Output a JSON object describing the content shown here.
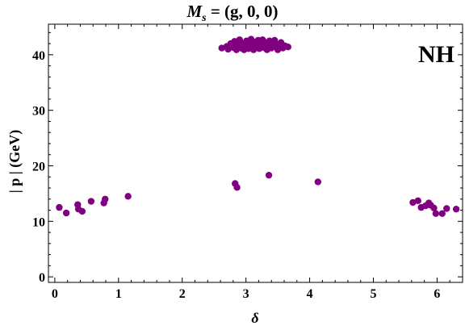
{
  "chart_data": {
    "type": "scatter",
    "title": "M_s = (g, 0, 0)",
    "title_parts": {
      "main": "M",
      "sub": "s",
      "rest": " = (g, 0, 0)"
    },
    "xlabel": "δ",
    "ylabel": "| p | (GeV)",
    "annotation": "NH",
    "xlim": [
      -0.1,
      6.4
    ],
    "ylim": [
      -1,
      45.5
    ],
    "xticks": [
      0,
      1,
      2,
      3,
      4,
      5,
      6
    ],
    "yticks": [
      0,
      10,
      20,
      30,
      40
    ],
    "grid": false,
    "marker_color": "#800080",
    "series": [
      {
        "points": [
          [
            0.07,
            12.5
          ],
          [
            0.18,
            11.5
          ],
          [
            0.36,
            13.0
          ],
          [
            0.37,
            12.2
          ],
          [
            0.43,
            11.8
          ],
          [
            0.57,
            13.6
          ],
          [
            0.77,
            13.3
          ],
          [
            0.79,
            14.0
          ],
          [
            1.15,
            14.5
          ],
          [
            2.83,
            16.8
          ],
          [
            2.86,
            16.1
          ],
          [
            3.36,
            18.3
          ],
          [
            4.13,
            17.1
          ],
          [
            5.62,
            13.4
          ],
          [
            5.7,
            13.7
          ],
          [
            5.75,
            12.5
          ],
          [
            5.82,
            12.8
          ],
          [
            5.87,
            13.3
          ],
          [
            5.9,
            12.9
          ],
          [
            5.95,
            12.4
          ],
          [
            5.98,
            11.4
          ],
          [
            6.08,
            11.4
          ],
          [
            6.15,
            12.3
          ],
          [
            6.3,
            12.2
          ],
          [
            2.62,
            41.2
          ],
          [
            2.7,
            41.5
          ],
          [
            2.72,
            41.0
          ],
          [
            2.76,
            42.0
          ],
          [
            2.8,
            41.3
          ],
          [
            2.82,
            42.4
          ],
          [
            2.85,
            40.9
          ],
          [
            2.87,
            41.8
          ],
          [
            2.9,
            42.7
          ],
          [
            2.92,
            41.2
          ],
          [
            2.94,
            42.1
          ],
          [
            2.97,
            40.9
          ],
          [
            2.99,
            41.6
          ],
          [
            3.01,
            42.5
          ],
          [
            3.04,
            41.1
          ],
          [
            3.06,
            42.0
          ],
          [
            3.08,
            42.8
          ],
          [
            3.1,
            41.4
          ],
          [
            3.12,
            40.9
          ],
          [
            3.15,
            42.3
          ],
          [
            3.17,
            41.7
          ],
          [
            3.19,
            42.6
          ],
          [
            3.21,
            41.1
          ],
          [
            3.24,
            41.9
          ],
          [
            3.26,
            42.7
          ],
          [
            3.28,
            41.3
          ],
          [
            3.31,
            42.2
          ],
          [
            3.33,
            40.9
          ],
          [
            3.35,
            41.6
          ],
          [
            3.37,
            42.5
          ],
          [
            3.4,
            41.2
          ],
          [
            3.42,
            42.0
          ],
          [
            3.45,
            42.6
          ],
          [
            3.47,
            41.5
          ],
          [
            3.5,
            40.9
          ],
          [
            3.52,
            41.8
          ],
          [
            3.55,
            42.2
          ],
          [
            3.58,
            41.2
          ],
          [
            3.61,
            41.6
          ],
          [
            3.66,
            41.4
          ]
        ]
      }
    ]
  }
}
